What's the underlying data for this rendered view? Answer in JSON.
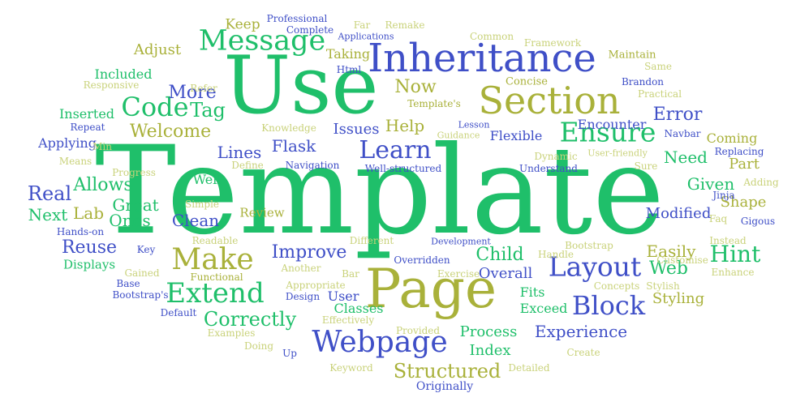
{
  "palette": {
    "green": "#1fbf6a",
    "blue": "#3f4fc7",
    "olive": "#a9b13a",
    "light": "#c9d27a",
    "teal": "#2aa7a0"
  },
  "words": [
    {
      "text": "Template",
      "c": "green"
    },
    {
      "text": "Use",
      "c": "green"
    },
    {
      "text": "Page",
      "c": "olive"
    },
    {
      "text": "Inheritance",
      "c": "blue"
    },
    {
      "text": "Section",
      "c": "olive"
    },
    {
      "text": "Message",
      "c": "green"
    },
    {
      "text": "Code",
      "c": "green"
    },
    {
      "text": "Tag",
      "c": "green"
    },
    {
      "text": "Ensure",
      "c": "green"
    },
    {
      "text": "Learn",
      "c": "blue"
    },
    {
      "text": "Make",
      "c": "olive"
    },
    {
      "text": "Extend",
      "c": "green"
    },
    {
      "text": "Layout",
      "c": "blue"
    },
    {
      "text": "Block",
      "c": "blue"
    },
    {
      "text": "Webpage",
      "c": "blue"
    },
    {
      "text": "Hint",
      "c": "green"
    },
    {
      "text": "Structured",
      "c": "olive"
    },
    {
      "text": "Correctly",
      "c": "green"
    },
    {
      "text": "Experience",
      "c": "blue"
    },
    {
      "text": "Error",
      "c": "blue"
    },
    {
      "text": "Real",
      "c": "blue"
    },
    {
      "text": "Next",
      "c": "green"
    },
    {
      "text": "Reuse",
      "c": "blue"
    },
    {
      "text": "Improve",
      "c": "blue"
    },
    {
      "text": "Child",
      "c": "green"
    },
    {
      "text": "Web",
      "c": "green"
    },
    {
      "text": "Easily",
      "c": "olive"
    },
    {
      "text": "More",
      "c": "blue"
    },
    {
      "text": "Adjust",
      "c": "olive"
    },
    {
      "text": "Keep",
      "c": "olive"
    },
    {
      "text": "Now",
      "c": "olive"
    },
    {
      "text": "Help",
      "c": "olive"
    },
    {
      "text": "Welcome",
      "c": "olive"
    },
    {
      "text": "Flask",
      "c": "blue"
    },
    {
      "text": "Lines",
      "c": "blue"
    },
    {
      "text": "Allows",
      "c": "green"
    },
    {
      "text": "Great",
      "c": "green"
    },
    {
      "text": "Lab",
      "c": "olive"
    },
    {
      "text": "Ones",
      "c": "green"
    },
    {
      "text": "Clean",
      "c": "blue"
    },
    {
      "text": "Well",
      "c": "green"
    },
    {
      "text": "Given",
      "c": "green"
    },
    {
      "text": "Need",
      "c": "green"
    },
    {
      "text": "Part",
      "c": "olive"
    },
    {
      "text": "Shape",
      "c": "olive"
    },
    {
      "text": "Modified",
      "c": "blue"
    },
    {
      "text": "Issues",
      "c": "blue"
    },
    {
      "text": "Taking",
      "c": "olive"
    },
    {
      "text": "Included",
      "c": "green"
    },
    {
      "text": "Inserted",
      "c": "green"
    },
    {
      "text": "Applying",
      "c": "blue"
    },
    {
      "text": "Encounter",
      "c": "blue"
    },
    {
      "text": "Flexible",
      "c": "blue"
    },
    {
      "text": "Coming",
      "c": "olive"
    },
    {
      "text": "Overall",
      "c": "blue"
    },
    {
      "text": "Fits",
      "c": "green"
    },
    {
      "text": "Exceed",
      "c": "green"
    },
    {
      "text": "Styling",
      "c": "olive"
    },
    {
      "text": "Process",
      "c": "green"
    },
    {
      "text": "Index",
      "c": "green"
    },
    {
      "text": "Classes",
      "c": "green"
    },
    {
      "text": "User",
      "c": "blue"
    },
    {
      "text": "Displays",
      "c": "green"
    },
    {
      "text": "Review",
      "c": "olive"
    },
    {
      "text": "Maintain",
      "c": "olive"
    },
    {
      "text": "Far",
      "c": "light"
    },
    {
      "text": "Remake",
      "c": "light"
    },
    {
      "text": "Professional",
      "c": "blue"
    },
    {
      "text": "Complete",
      "c": "blue"
    },
    {
      "text": "Applications",
      "c": "blue"
    },
    {
      "text": "Common",
      "c": "light"
    },
    {
      "text": "Framework",
      "c": "light"
    },
    {
      "text": "Same",
      "c": "light"
    },
    {
      "text": "Html",
      "c": "blue"
    },
    {
      "text": "Responsive",
      "c": "light"
    },
    {
      "text": "Refer",
      "c": "light"
    },
    {
      "text": "Concise",
      "c": "olive"
    },
    {
      "text": "Brandon",
      "c": "blue"
    },
    {
      "text": "Practical",
      "c": "light"
    },
    {
      "text": "Template's",
      "c": "olive"
    },
    {
      "text": "Repeat",
      "c": "blue"
    },
    {
      "text": "Knowledge",
      "c": "light"
    },
    {
      "text": "Lesson",
      "c": "blue"
    },
    {
      "text": "Guidance",
      "c": "light"
    },
    {
      "text": "Navbar",
      "c": "blue"
    },
    {
      "text": "Min",
      "c": "light"
    },
    {
      "text": "Means",
      "c": "light"
    },
    {
      "text": "Progress",
      "c": "light"
    },
    {
      "text": "Define",
      "c": "light"
    },
    {
      "text": "Navigation",
      "c": "blue"
    },
    {
      "text": "Well-structured",
      "c": "blue"
    },
    {
      "text": "Dynamic",
      "c": "light"
    },
    {
      "text": "User-friendly",
      "c": "light"
    },
    {
      "text": "Replacing",
      "c": "blue"
    },
    {
      "text": "Sure",
      "c": "light"
    },
    {
      "text": "Understand",
      "c": "blue"
    },
    {
      "text": "Adding",
      "c": "light"
    },
    {
      "text": "Jinja",
      "c": "blue"
    },
    {
      "text": "Simple",
      "c": "light"
    },
    {
      "text": "Faq",
      "c": "light"
    },
    {
      "text": "Gigous",
      "c": "blue"
    },
    {
      "text": "Hands-on",
      "c": "blue"
    },
    {
      "text": "Key",
      "c": "blue"
    },
    {
      "text": "Readable",
      "c": "light"
    },
    {
      "text": "Different",
      "c": "light"
    },
    {
      "text": "Development",
      "c": "blue"
    },
    {
      "text": "Bootstrap",
      "c": "light"
    },
    {
      "text": "Handle",
      "c": "light"
    },
    {
      "text": "Instead",
      "c": "light"
    },
    {
      "text": "Enhance",
      "c": "light"
    },
    {
      "text": "Gained",
      "c": "light"
    },
    {
      "text": "Functional",
      "c": "olive"
    },
    {
      "text": "Another",
      "c": "light"
    },
    {
      "text": "Overridden",
      "c": "blue"
    },
    {
      "text": "Bar",
      "c": "light"
    },
    {
      "text": "Exercise",
      "c": "light"
    },
    {
      "text": "Base",
      "c": "blue"
    },
    {
      "text": "Bootstrap's",
      "c": "blue"
    },
    {
      "text": "Appropriate",
      "c": "light"
    },
    {
      "text": "Design",
      "c": "blue"
    },
    {
      "text": "Concepts",
      "c": "light"
    },
    {
      "text": "Stylish",
      "c": "light"
    },
    {
      "text": "Default",
      "c": "blue"
    },
    {
      "text": "Effectively",
      "c": "light"
    },
    {
      "text": "Provided",
      "c": "light"
    },
    {
      "text": "Examples",
      "c": "light"
    },
    {
      "text": "Doing",
      "c": "light"
    },
    {
      "text": "Up",
      "c": "blue"
    },
    {
      "text": "Create",
      "c": "light"
    },
    {
      "text": "Keyword",
      "c": "light"
    },
    {
      "text": "Detailed",
      "c": "light"
    },
    {
      "text": "Originally",
      "c": "blue"
    },
    {
      "text": "Customise",
      "c": "light"
    }
  ]
}
